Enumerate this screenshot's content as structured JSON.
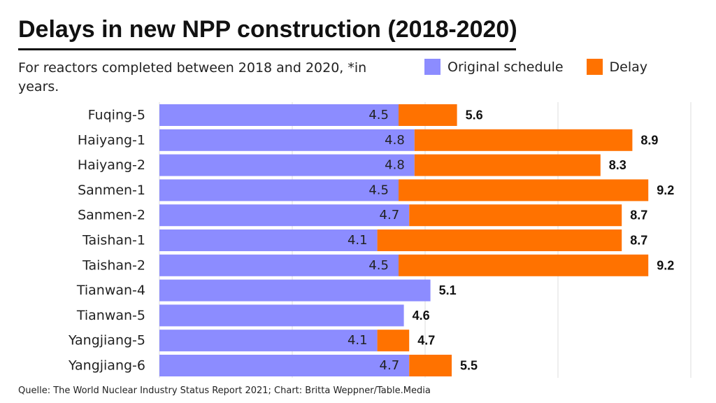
{
  "title": "Delays in new NPP construction (2018-2020)",
  "subtitle": "For reactors completed between 2018 and 2020, *in years.",
  "source": "Quelle: The World Nuclear Industry Status Report 2021; Chart: Britta Weppner/Table.Media",
  "colors": {
    "original": "#8c8cff",
    "delay": "#ff7200",
    "grid": "#dddddd"
  },
  "chart_data": {
    "type": "bar",
    "orientation": "horizontal",
    "stacked": true,
    "categories": [
      "Fuqing-5",
      "Haiyang-1",
      "Haiyang-2",
      "Sanmen-1",
      "Sanmen-2",
      "Taishan-1",
      "Taishan-2",
      "Tianwan-4",
      "Tianwan-5",
      "Yangjiang-5",
      "Yangjiang-6"
    ],
    "series": [
      {
        "name": "Original schedule",
        "values": [
          4.5,
          4.8,
          4.8,
          4.5,
          4.7,
          4.1,
          4.5,
          5.1,
          4.6,
          4.1,
          4.7
        ]
      },
      {
        "name": "Delay",
        "values": [
          1.1,
          4.1,
          3.5,
          4.7,
          4.0,
          4.6,
          4.7,
          0,
          0,
          0.6,
          0.8
        ]
      }
    ],
    "original_labels": [
      "4.5",
      "4.8",
      "4.8",
      "4.5",
      "4.7",
      "4.1",
      "4.5",
      "",
      "",
      "4.1",
      "4.7"
    ],
    "total_labels": [
      "5.6",
      "8.9",
      "8.3",
      "9.2",
      "8.7",
      "8.7",
      "9.2",
      "5.1",
      "4.6",
      "4.7",
      "5.5"
    ],
    "xlim": [
      0,
      10
    ],
    "grid": true,
    "legend_position": "top-right"
  }
}
